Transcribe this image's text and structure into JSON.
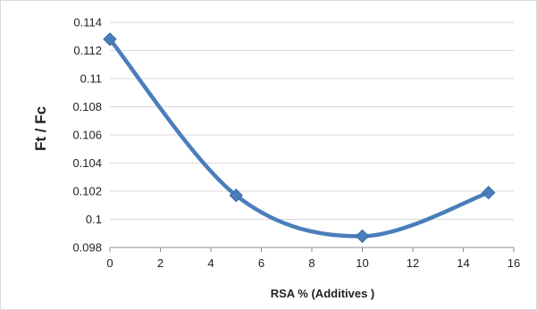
{
  "chart_data": {
    "type": "line",
    "smooth": true,
    "marker": "diamond",
    "title": "",
    "xlabel": "RSA % (Additives )",
    "ylabel": "Ft / Fc",
    "xlim": [
      0,
      16
    ],
    "ylim": [
      0.098,
      0.114
    ],
    "x_ticks": [
      0,
      2,
      4,
      6,
      8,
      10,
      12,
      14,
      16
    ],
    "y_ticks": [
      0.098,
      0.1,
      0.102,
      0.104,
      0.106,
      0.108,
      0.11,
      0.112,
      0.114
    ],
    "x_tick_labels": [
      "0",
      "2",
      "4",
      "6",
      "8",
      "10",
      "12",
      "14",
      "16"
    ],
    "y_tick_labels": [
      "0.098",
      "0.1",
      "0.102",
      "0.104",
      "0.106",
      "0.108",
      "0.11",
      "0.112",
      "0.114"
    ],
    "grid": "horizontal",
    "legend": "none",
    "series": [
      {
        "x": [
          0,
          5,
          10,
          15
        ],
        "y": [
          0.1128,
          0.1017,
          0.0988,
          0.1019
        ],
        "color": "#4a7ebb"
      }
    ]
  }
}
